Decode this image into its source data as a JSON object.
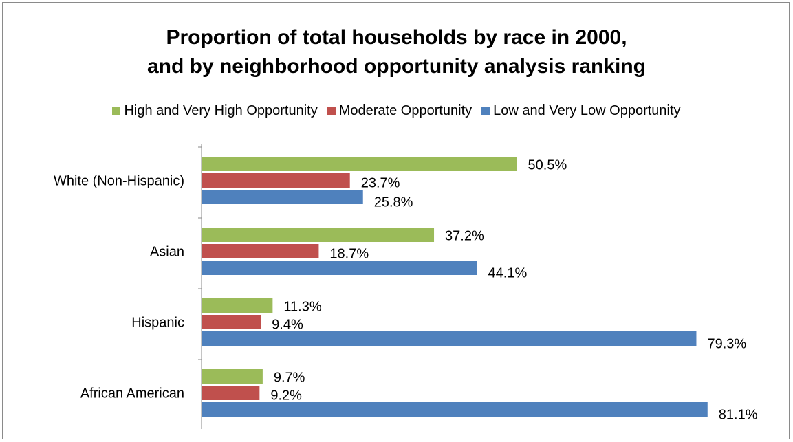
{
  "chart_data": {
    "type": "bar",
    "orientation": "horizontal",
    "title_lines": [
      "Proportion of total households by race in 2000,",
      "and by neighborhood opportunity analysis ranking"
    ],
    "categories": [
      "White (Non-Hispanic)",
      "Asian",
      "Hispanic",
      "African American"
    ],
    "series": [
      {
        "name": "High and Very High Opportunity",
        "color": "#9bbb59",
        "values": [
          50.5,
          37.2,
          11.3,
          9.7
        ],
        "labels": [
          "50.5%",
          "37.2%",
          "11.3%",
          "9.7%"
        ]
      },
      {
        "name": "Moderate Opportunity",
        "color": "#c0504d",
        "values": [
          23.7,
          18.7,
          9.4,
          9.2
        ],
        "labels": [
          "23.7%",
          "18.7%",
          "9.4%",
          "9.2%"
        ]
      },
      {
        "name": "Low and Very Low Opportunity",
        "color": "#4f81bd",
        "values": [
          25.8,
          44.1,
          79.3,
          81.1
        ],
        "labels": [
          "25.8%",
          "44.1%",
          "79.3%",
          "81.1%"
        ]
      }
    ],
    "xlim": [
      0,
      100
    ],
    "legend_position": "top",
    "grid": false
  }
}
